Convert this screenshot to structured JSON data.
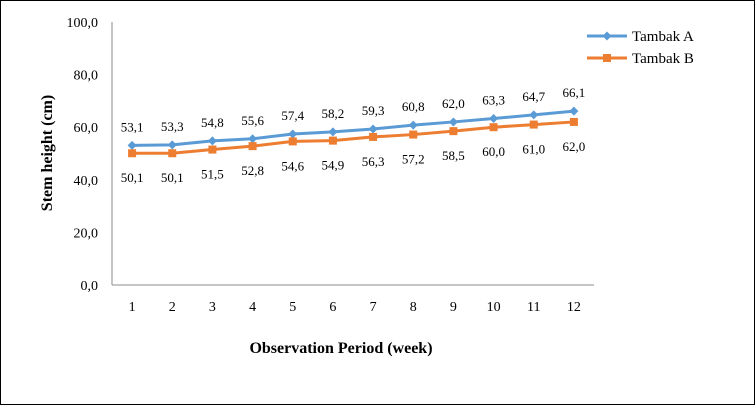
{
  "chart_data": {
    "type": "line",
    "xlabel": "Observation Period (week)",
    "ylabel": "Stem height (cm)",
    "ylim": [
      0,
      100
    ],
    "yticks": [
      "0,0",
      "20,0",
      "40,0",
      "60,0",
      "80,0",
      "100,0"
    ],
    "categories": [
      "1",
      "2",
      "3",
      "4",
      "5",
      "6",
      "7",
      "8",
      "9",
      "10",
      "11",
      "12"
    ],
    "grid": false,
    "legend_position": "top-right",
    "series": [
      {
        "name": "Tambak A",
        "color": "#5B9BD5",
        "marker": "diamond",
        "values": [
          53.1,
          53.3,
          54.8,
          55.6,
          57.4,
          58.2,
          59.3,
          60.8,
          62.0,
          63.3,
          64.7,
          66.1
        ],
        "labels": [
          "53,1",
          "53,3",
          "54,8",
          "55,6",
          "57,4",
          "58,2",
          "59,3",
          "60,8",
          "62,0",
          "63,3",
          "64,7",
          "66,1"
        ]
      },
      {
        "name": "Tambak B",
        "color": "#ED7D31",
        "marker": "square",
        "values": [
          50.1,
          50.1,
          51.5,
          52.8,
          54.6,
          54.9,
          56.3,
          57.2,
          58.5,
          60.0,
          61.0,
          62.0
        ],
        "labels": [
          "50,1",
          "50,1",
          "51,5",
          "52,8",
          "54,6",
          "54,9",
          "56,3",
          "57,2",
          "58,5",
          "60,0",
          "61,0",
          "62,0"
        ]
      }
    ]
  }
}
